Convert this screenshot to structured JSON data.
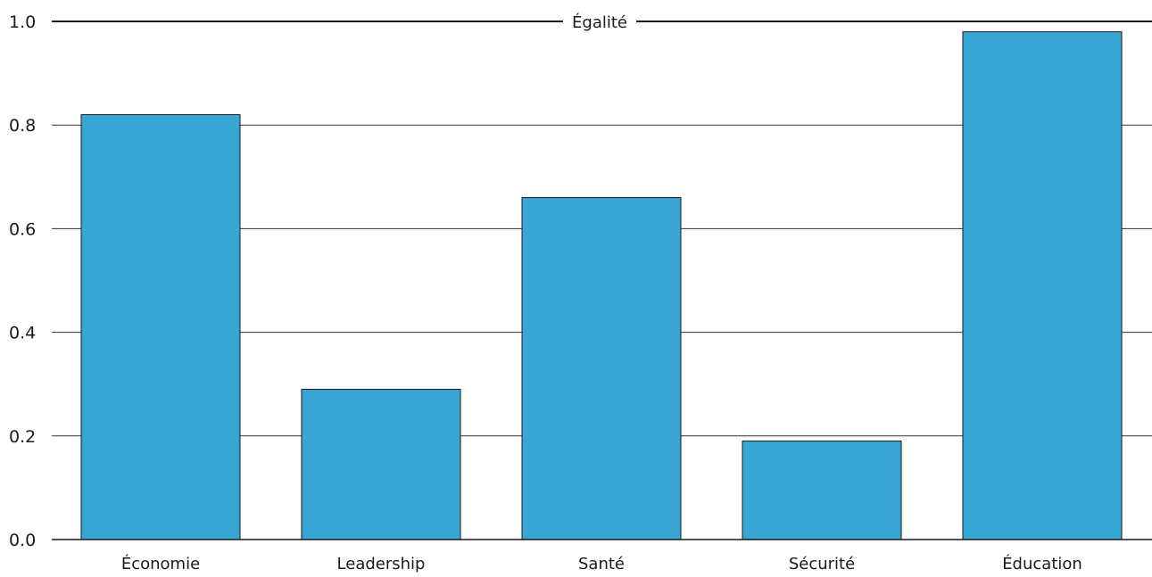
{
  "chart_data": {
    "type": "bar",
    "title": "Égalité",
    "xlabel": "",
    "ylabel": "",
    "categories": [
      "Économie",
      "Leadership",
      "Santé",
      "Sécurité",
      "Éducation"
    ],
    "values": [
      0.82,
      0.29,
      0.66,
      0.19,
      0.98
    ],
    "ylim": [
      0,
      1.0
    ],
    "yticks": [
      "0.0",
      "0.2",
      "0.4",
      "0.6",
      "0.8",
      "1.0"
    ],
    "grid": true,
    "legend": "none",
    "bar_color": "#38a6d4",
    "bar_edge_color": "#1a1a1a"
  }
}
